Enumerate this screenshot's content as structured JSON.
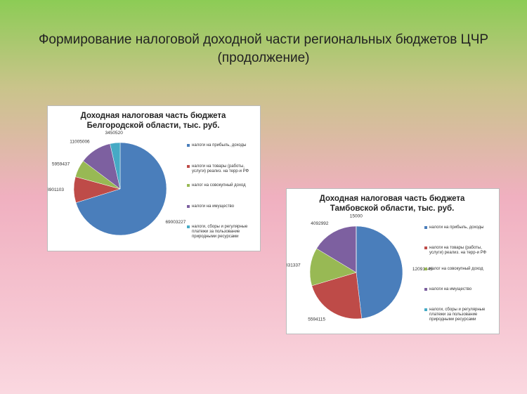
{
  "title": "Формирование налоговой доходной части региональных бюджетов ЦЧР (продолжение)",
  "chart_data": [
    {
      "type": "pie",
      "title": "Доходная налоговая часть бюджета Белгородской области, тыс. руб.",
      "categories": [
        "налоги на прибыль, доходы",
        "налоги на товары (работы, услуги) реализ. на терр-и РФ",
        "налог на совокупный доход",
        "налоги на имущество",
        "налоги, сборы и регулярные платежи за пользование природными ресурсами"
      ],
      "values": [
        69003227,
        8901103,
        5959437,
        11005006,
        3450520
      ],
      "colors": [
        "#4a7ebb",
        "#be4b48",
        "#98b954",
        "#7d60a0",
        "#46aac5"
      ]
    },
    {
      "type": "pie",
      "title": "Доходная налоговая часть бюджета Тамбовской области, тыс. руб.",
      "categories": [
        "налоги на прибыль, доходы",
        "налоги на товары (работы, услуги) реализ. на терр-и РФ",
        "налог на совокупный доход",
        "налоги на имущество",
        "налоги, сборы и регулярные платежи за пользование природными ресурсами"
      ],
      "values": [
        12091445,
        5594115,
        3331337,
        4092992,
        15000
      ],
      "colors": [
        "#4a7ebb",
        "#be4b48",
        "#98b954",
        "#7d60a0",
        "#46aac5"
      ]
    }
  ]
}
